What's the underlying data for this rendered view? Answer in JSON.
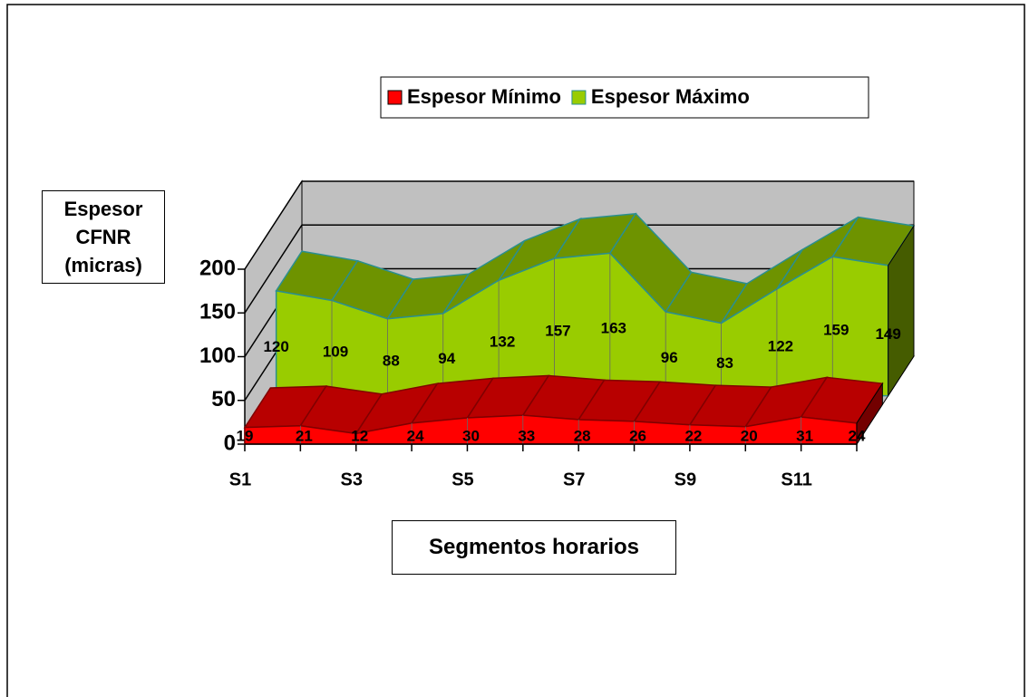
{
  "chart_data": {
    "type": "area3d",
    "legend": {
      "position": "top"
    },
    "y_label": "Espesor CFNR (micras)",
    "x_label": "Segmentos horarios",
    "categories": [
      "S1",
      null,
      "S3",
      null,
      "S5",
      null,
      "S7",
      null,
      "S9",
      null,
      "S11",
      null
    ],
    "series": [
      {
        "name": "Espesor Mínimo",
        "color": "#ff0000",
        "values": [
          19,
          21,
          12,
          24,
          30,
          33,
          28,
          26,
          22,
          20,
          31,
          24
        ]
      },
      {
        "name": "Espesor Máximo",
        "color": "#99cc00",
        "values": [
          120,
          109,
          88,
          94,
          132,
          157,
          163,
          96,
          83,
          122,
          159,
          149
        ]
      }
    ],
    "ylim": [
      0,
      200
    ],
    "yticks": [
      0,
      50,
      100,
      150,
      200
    ],
    "grid": true
  }
}
